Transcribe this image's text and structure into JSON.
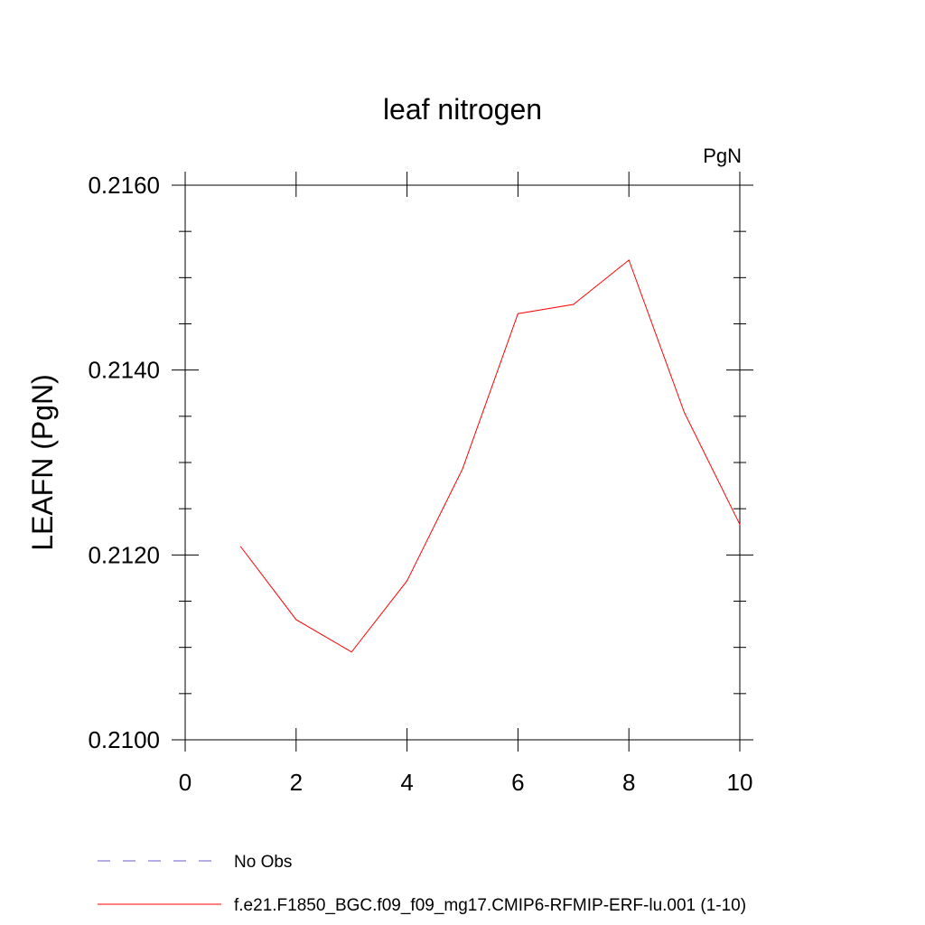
{
  "chart_data": {
    "type": "line",
    "title": "leaf nitrogen",
    "units": "PgN",
    "xlabel": "",
    "ylabel": "LEAFN  (PgN)",
    "xlim": [
      0,
      10
    ],
    "ylim": [
      0.21,
      0.216
    ],
    "x_ticks": [
      0,
      2,
      4,
      6,
      8,
      10
    ],
    "x_tick_labels": [
      "0",
      "2",
      "4",
      "6",
      "8",
      "10"
    ],
    "y_ticks": [
      0.21,
      0.212,
      0.214,
      0.216
    ],
    "y_tick_labels": [
      "0.2100",
      "0.2120",
      "0.2140",
      "0.2160"
    ],
    "y_minor_step": 0.0005,
    "grid": false,
    "legend_position": "bottom-left",
    "series": [
      {
        "name": "f.e21.F1850_BGC.f09_f09_mg17.CMIP6-RFMIP-ERF-lu.001 (1-10)",
        "color": "#ff0000",
        "dash": "solid",
        "x": [
          1,
          2,
          3,
          4,
          5,
          6,
          7,
          8,
          9,
          10
        ],
        "y": [
          0.21209,
          0.2113,
          0.21095,
          0.21172,
          0.21293,
          0.21461,
          0.21471,
          0.21519,
          0.21354,
          0.21233
        ]
      }
    ],
    "legend": [
      {
        "label": "No Obs",
        "color": "#6a5acd",
        "dash": "dashed"
      },
      {
        "label": "f.e21.F1850_BGC.f09_f09_mg17.CMIP6-RFMIP-ERF-lu.001 (1-10)",
        "color": "#ff0000",
        "dash": "solid"
      }
    ]
  }
}
